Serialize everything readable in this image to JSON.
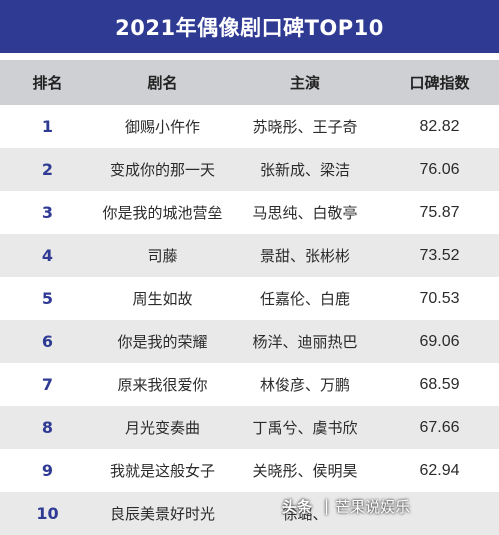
{
  "title": "2021年偶像剧口碑TOP10",
  "headers": {
    "rank": "排名",
    "drama": "剧名",
    "cast": "主演",
    "score": "口碑指数"
  },
  "rows": [
    {
      "rank": "1",
      "drama": "御赐小仵作",
      "cast": "苏晓彤、王子奇",
      "score": "82.82"
    },
    {
      "rank": "2",
      "drama": "变成你的那一天",
      "cast": "张新成、梁洁",
      "score": "76.06"
    },
    {
      "rank": "3",
      "drama": "你是我的城池营垒",
      "cast": "马思纯、白敬亭",
      "score": "75.87"
    },
    {
      "rank": "4",
      "drama": "司藤",
      "cast": "景甜、张彬彬",
      "score": "73.52"
    },
    {
      "rank": "5",
      "drama": "周生如故",
      "cast": "任嘉伦、白鹿",
      "score": "70.53"
    },
    {
      "rank": "6",
      "drama": "你是我的荣耀",
      "cast": "杨洋、迪丽热巴",
      "score": "69.06"
    },
    {
      "rank": "7",
      "drama": "原来我很爱你",
      "cast": "林俊彦、万鹏",
      "score": "68.59"
    },
    {
      "rank": "8",
      "drama": "月光变奏曲",
      "cast": "丁禹兮、虞书欣",
      "score": "67.66"
    },
    {
      "rank": "9",
      "drama": "我就是这般女子",
      "cast": "关晓彤、侯明昊",
      "score": "62.94"
    },
    {
      "rank": "10",
      "drama": "良辰美景好时光",
      "cast": "徐璐、",
      "score": ""
    }
  ],
  "watermark": {
    "logo": "头条",
    "separator": "|",
    "text": "芒果说娱乐"
  },
  "colors": {
    "title_bg": "#2f3a93",
    "header_bg": "#cfd0d3",
    "alt_row_bg": "#e9e9ea",
    "rank_color": "#2f3a93"
  }
}
